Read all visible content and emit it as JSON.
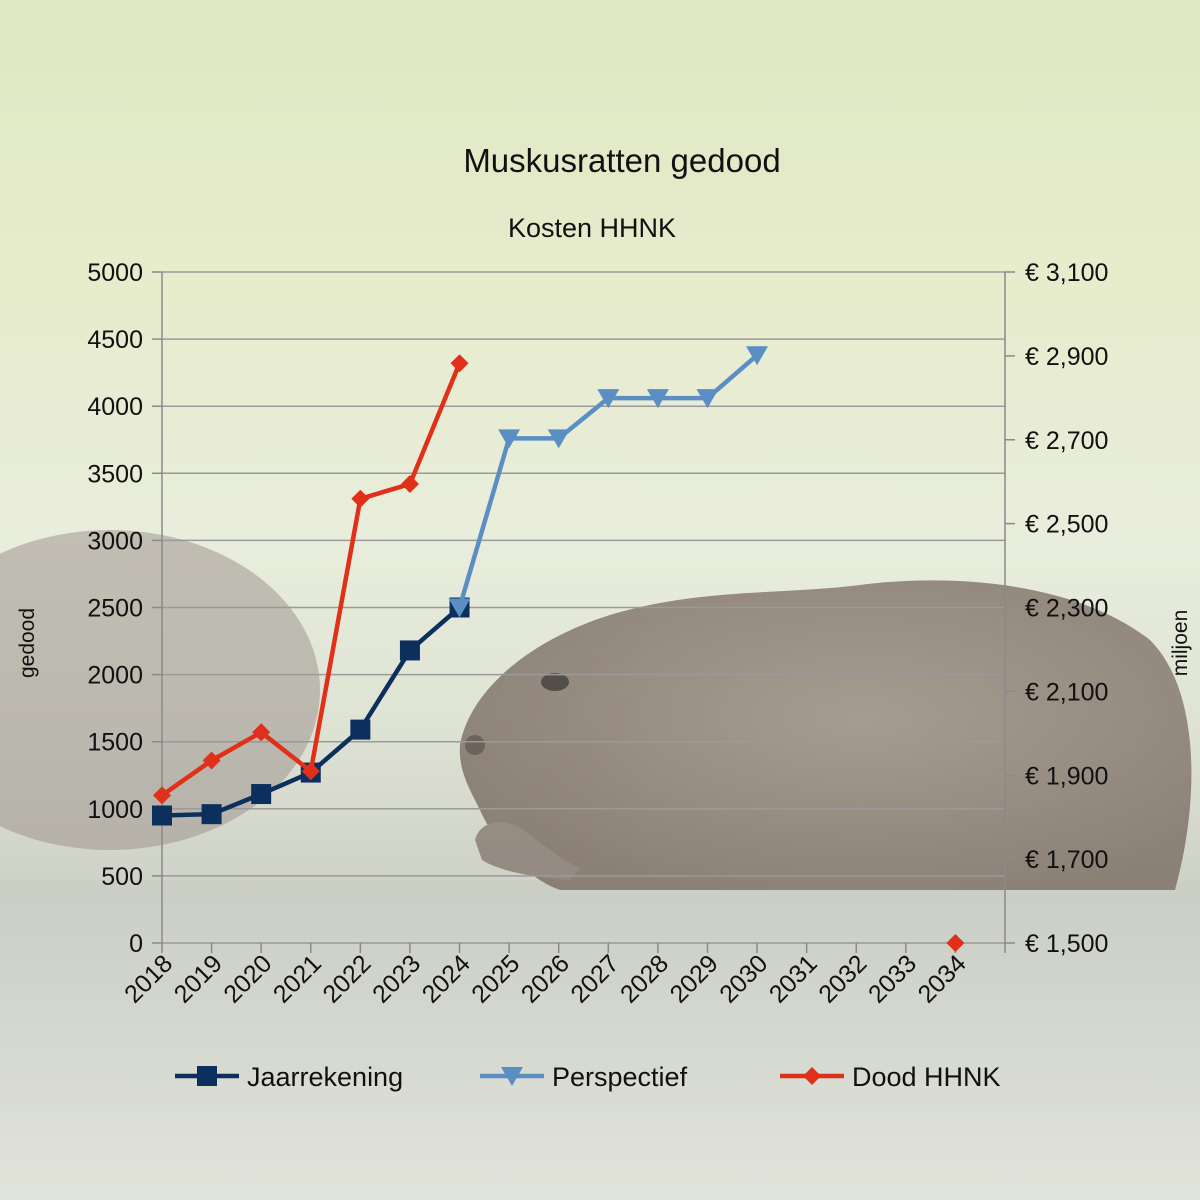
{
  "chart_data": {
    "type": "line",
    "title": "Muskusratten gedood",
    "subtitle": "Kosten HHNK",
    "ylabel": "gedood",
    "y2label": "miljoen",
    "categories": [
      "2018",
      "2019",
      "2020",
      "2021",
      "2022",
      "2023",
      "2024",
      "2025",
      "2026",
      "2027",
      "2028",
      "2029",
      "2030",
      "2031",
      "2032",
      "2033",
      "2034"
    ],
    "ylim": [
      0,
      5000
    ],
    "yticks": [
      "0",
      "500",
      "1000",
      "1500",
      "2000",
      "2500",
      "3000",
      "3500",
      "4000",
      "4500",
      "5000"
    ],
    "y2lim": [
      1500,
      3100
    ],
    "y2ticks": [
      "€ 1,500",
      "€ 1,700",
      "€ 1,900",
      "€ 2,100",
      "€ 2,300",
      "€ 2,500",
      "€ 2,700",
      "€ 2,900",
      "€ 3,100"
    ],
    "grid": true,
    "legend_position": "bottom",
    "series": [
      {
        "name": "Jaarrekening",
        "axis": "left",
        "color": "#0d2f5e",
        "marker": "square",
        "values": [
          950,
          960,
          1110,
          1270,
          1590,
          2180,
          2500,
          null,
          null,
          null,
          null,
          null,
          null,
          null,
          null,
          null,
          null
        ]
      },
      {
        "name": "Perspectief",
        "axis": "left",
        "color": "#5b8fc4",
        "marker": "triangle-down",
        "values": [
          null,
          null,
          null,
          null,
          null,
          null,
          2500,
          3760,
          3760,
          4060,
          4060,
          4060,
          4380,
          null,
          null,
          null,
          null
        ]
      },
      {
        "name": "Dood HHNK",
        "axis": "left",
        "color": "#e0301a",
        "marker": "diamond",
        "values": [
          1100,
          1360,
          1570,
          1280,
          3310,
          3420,
          4320,
          null,
          null,
          null,
          null,
          null,
          null,
          null,
          null,
          null,
          0
        ]
      }
    ]
  },
  "colors": {
    "grid": "#9a9a9a",
    "axis": "#8a8a8a"
  }
}
